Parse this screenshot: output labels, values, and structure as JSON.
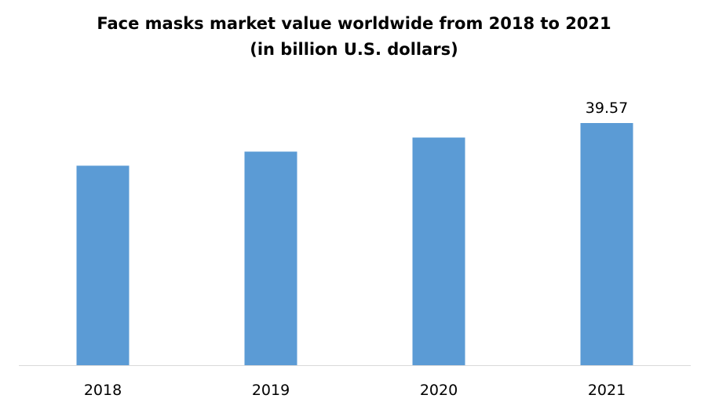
{
  "chart_data": {
    "type": "bar",
    "title": "Face masks market value worldwide from 2018 to 2021",
    "subtitle": "(in billion U.S. dollars)",
    "categories": [
      "2018",
      "2019",
      "2020",
      "2021"
    ],
    "values": [
      32.6,
      34.9,
      37.2,
      39.57
    ],
    "data_labels": [
      "",
      "",
      "",
      "39.57"
    ],
    "xlabel": "",
    "ylabel": "",
    "ylim": [
      0,
      39.57
    ],
    "grid": false,
    "legend": "none",
    "bar_color": "#5B9BD5",
    "axis_color": "#D9D9D9"
  }
}
